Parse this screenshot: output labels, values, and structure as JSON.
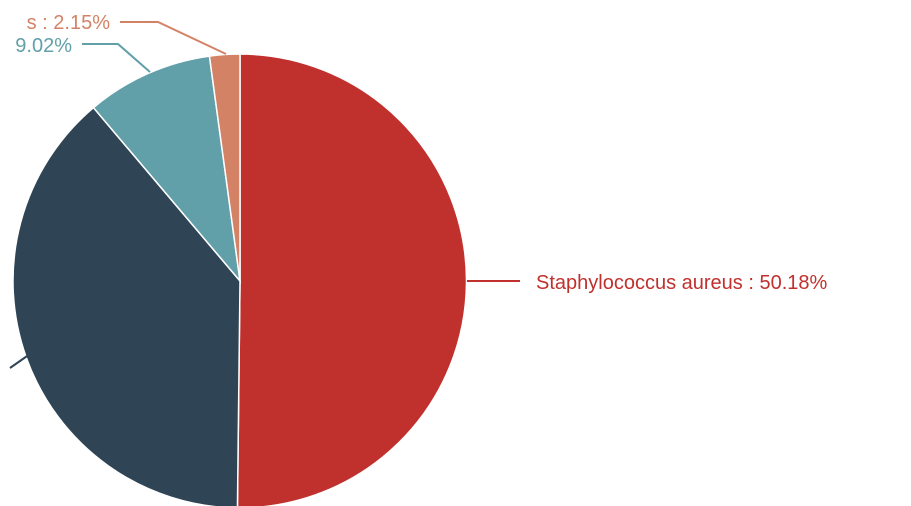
{
  "chart_data": {
    "type": "pie",
    "start": "12 o'clock",
    "direction": "clockwise",
    "series": [
      {
        "name": "",
        "slices": [
          {
            "label": "Staphylococcus  aureus : 50.18%",
            "value": 50.18,
            "color": "#c0312e"
          },
          {
            "label": "",
            "value": 38.65,
            "color": "#2f4455"
          },
          {
            "label": "9.02%",
            "value": 9.02,
            "color": "#61a0a8"
          },
          {
            "label": "s : 2.15%",
            "value": 2.15,
            "color": "#d48266"
          }
        ]
      }
    ]
  }
}
